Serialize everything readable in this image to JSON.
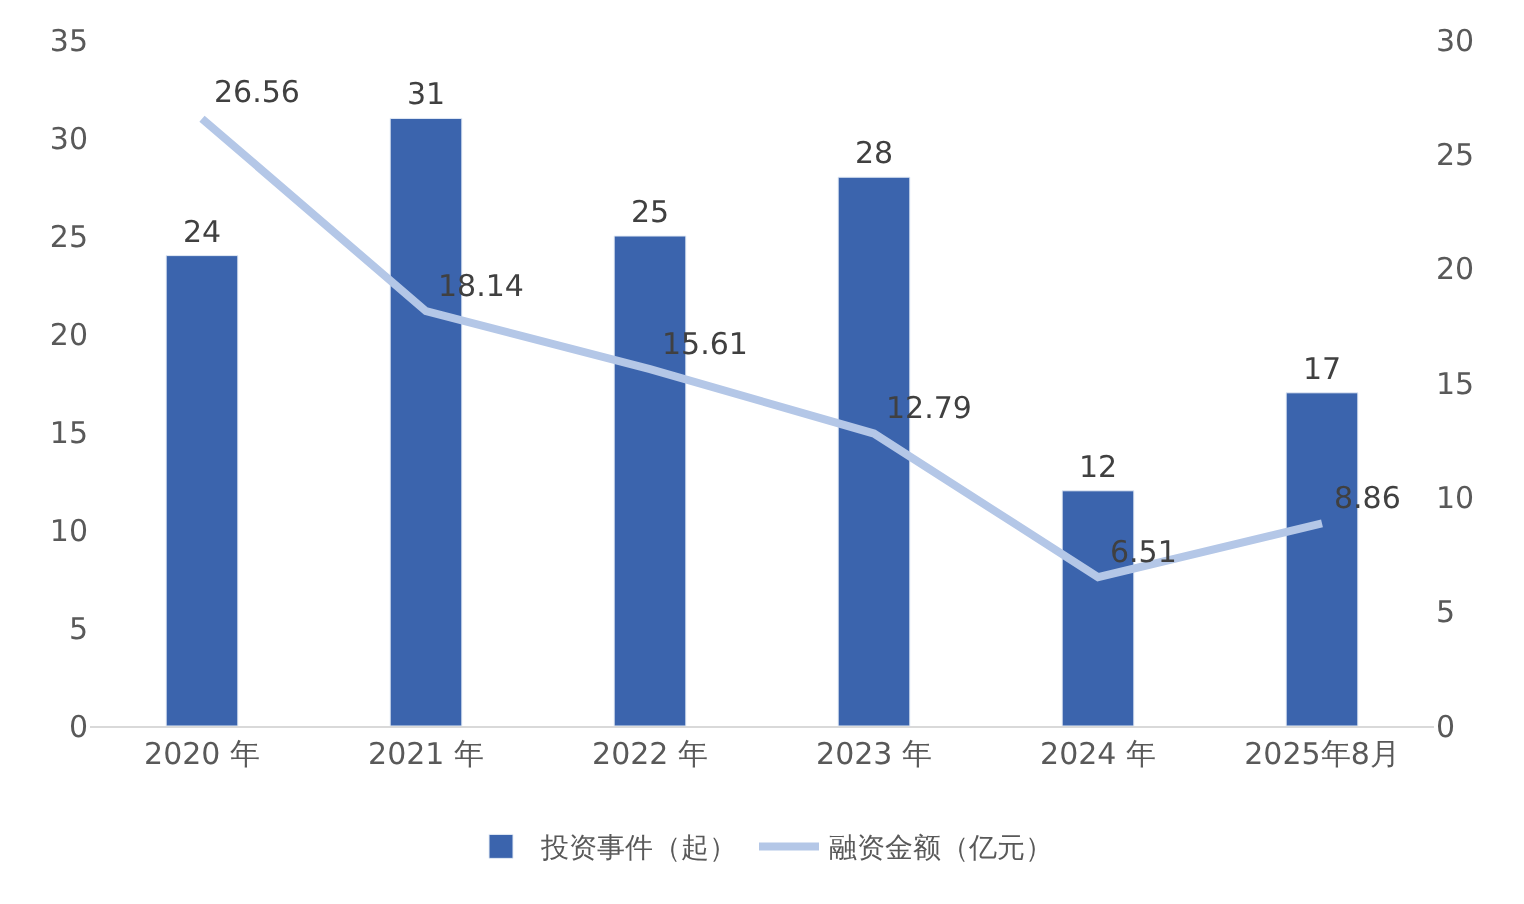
{
  "chart_data": {
    "type": "bar",
    "categories": [
      "2020 年",
      "2021 年",
      "2022 年",
      "2023 年",
      "2024 年",
      "2025年8月"
    ],
    "series": [
      {
        "name": "投资事件（起）",
        "color": "#3b64ad",
        "values": [
          24,
          31,
          25,
          28,
          12,
          17
        ]
      },
      {
        "name": "融资金额（亿元）",
        "type": "line",
        "axis": "y2",
        "color": "#b4c7e7",
        "values": [
          26.56,
          18.14,
          15.61,
          12.79,
          6.51,
          8.86
        ]
      }
    ],
    "ylim": [
      0,
      35
    ],
    "yticks": [
      0,
      5,
      10,
      15,
      20,
      25,
      30,
      35
    ],
    "y2lim": [
      0,
      30
    ],
    "y2ticks": [
      0,
      5,
      10,
      15,
      20,
      25,
      30
    ],
    "data_labels": true,
    "legend": "bottom",
    "marker": "none",
    "line_style": "solid"
  }
}
